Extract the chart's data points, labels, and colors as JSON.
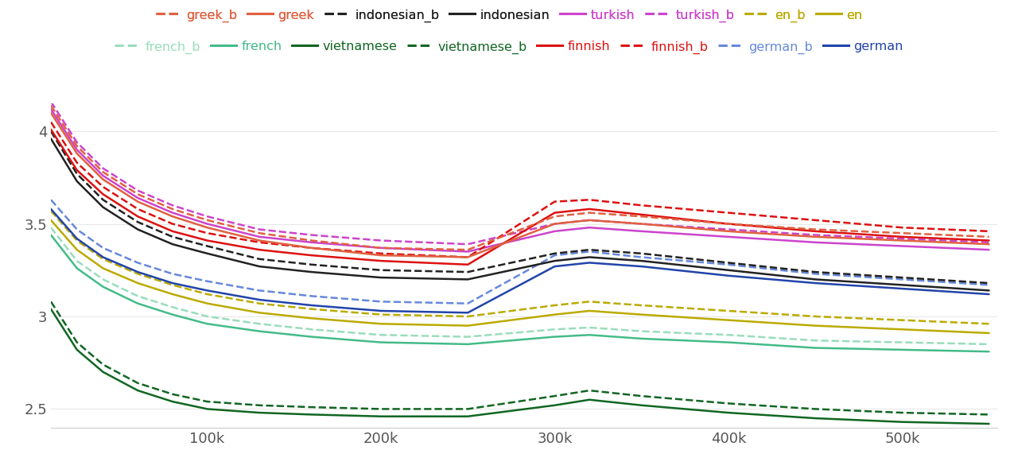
{
  "series": {
    "greek_b": {
      "color": "#E06040",
      "dashed": true
    },
    "greek": {
      "color": "#E06040",
      "dashed": false
    },
    "indonesian_b": {
      "color": "#222222",
      "dashed": true
    },
    "indonesian": {
      "color": "#222222",
      "dashed": false
    },
    "turkish": {
      "color": "#CC44CC",
      "dashed": false
    },
    "turkish_b": {
      "color": "#CC44CC",
      "dashed": true
    },
    "en_b": {
      "color": "#BBAA00",
      "dashed": true
    },
    "en": {
      "color": "#BBAA00",
      "dashed": false
    },
    "french_b": {
      "color": "#99DDBB",
      "dashed": true
    },
    "french": {
      "color": "#44BB88",
      "dashed": false
    },
    "vietnamese": {
      "color": "#116622",
      "dashed": false
    },
    "vietnamese_b": {
      "color": "#116622",
      "dashed": true
    },
    "finnish": {
      "color": "#DD1111",
      "dashed": false
    },
    "finnish_b": {
      "color": "#DD1111",
      "dashed": true
    },
    "german_b": {
      "color": "#6688DD",
      "dashed": true
    },
    "german": {
      "color": "#2244AA",
      "dashed": false
    }
  },
  "x": [
    10000,
    25000,
    40000,
    60000,
    80000,
    100000,
    130000,
    160000,
    200000,
    250000,
    300000,
    320000,
    350000,
    400000,
    450000,
    500000,
    550000
  ],
  "data": {
    "greek": [
      4.1,
      3.88,
      3.74,
      3.62,
      3.54,
      3.48,
      3.41,
      3.37,
      3.33,
      3.32,
      3.5,
      3.52,
      3.5,
      3.46,
      3.43,
      3.41,
      3.39
    ],
    "greek_b": [
      4.14,
      3.92,
      3.78,
      3.66,
      3.58,
      3.52,
      3.45,
      3.41,
      3.37,
      3.36,
      3.54,
      3.56,
      3.54,
      3.5,
      3.47,
      3.45,
      3.43
    ],
    "turkish": [
      4.12,
      3.9,
      3.76,
      3.64,
      3.56,
      3.5,
      3.43,
      3.4,
      3.37,
      3.35,
      3.46,
      3.48,
      3.46,
      3.43,
      3.4,
      3.38,
      3.36
    ],
    "turkish_b": [
      4.16,
      3.94,
      3.8,
      3.68,
      3.6,
      3.54,
      3.47,
      3.44,
      3.41,
      3.39,
      3.5,
      3.52,
      3.5,
      3.47,
      3.44,
      3.42,
      3.4
    ],
    "finnish": [
      4.01,
      3.79,
      3.66,
      3.54,
      3.46,
      3.41,
      3.36,
      3.33,
      3.3,
      3.28,
      3.56,
      3.58,
      3.55,
      3.5,
      3.46,
      3.43,
      3.41
    ],
    "finnish_b": [
      4.05,
      3.83,
      3.7,
      3.58,
      3.5,
      3.45,
      3.4,
      3.37,
      3.34,
      3.32,
      3.62,
      3.63,
      3.6,
      3.56,
      3.52,
      3.48,
      3.46
    ],
    "indonesian": [
      3.96,
      3.73,
      3.59,
      3.47,
      3.39,
      3.34,
      3.27,
      3.24,
      3.21,
      3.2,
      3.3,
      3.32,
      3.3,
      3.25,
      3.2,
      3.17,
      3.14
    ],
    "indonesian_b": [
      4.0,
      3.77,
      3.63,
      3.51,
      3.43,
      3.38,
      3.31,
      3.28,
      3.25,
      3.24,
      3.34,
      3.36,
      3.34,
      3.29,
      3.24,
      3.21,
      3.18
    ],
    "german": [
      3.58,
      3.42,
      3.32,
      3.24,
      3.18,
      3.14,
      3.09,
      3.06,
      3.03,
      3.02,
      3.27,
      3.29,
      3.27,
      3.22,
      3.18,
      3.15,
      3.12
    ],
    "german_b": [
      3.63,
      3.47,
      3.37,
      3.29,
      3.23,
      3.19,
      3.14,
      3.11,
      3.08,
      3.07,
      3.33,
      3.35,
      3.32,
      3.28,
      3.23,
      3.2,
      3.17
    ],
    "en": [
      3.52,
      3.36,
      3.26,
      3.18,
      3.12,
      3.07,
      3.02,
      2.99,
      2.96,
      2.95,
      3.01,
      3.03,
      3.01,
      2.98,
      2.95,
      2.93,
      2.91
    ],
    "en_b": [
      3.57,
      3.41,
      3.31,
      3.23,
      3.17,
      3.12,
      3.07,
      3.04,
      3.01,
      3.0,
      3.06,
      3.08,
      3.06,
      3.03,
      3.0,
      2.98,
      2.96
    ],
    "french_b": [
      3.48,
      3.3,
      3.2,
      3.11,
      3.05,
      3.0,
      2.96,
      2.93,
      2.9,
      2.89,
      2.93,
      2.94,
      2.92,
      2.9,
      2.87,
      2.86,
      2.85
    ],
    "french": [
      3.44,
      3.26,
      3.16,
      3.07,
      3.01,
      2.96,
      2.92,
      2.89,
      2.86,
      2.85,
      2.89,
      2.9,
      2.88,
      2.86,
      2.83,
      2.82,
      2.81
    ],
    "vietnamese": [
      3.04,
      2.82,
      2.7,
      2.6,
      2.54,
      2.5,
      2.48,
      2.47,
      2.46,
      2.46,
      2.52,
      2.55,
      2.52,
      2.48,
      2.45,
      2.43,
      2.42
    ],
    "vietnamese_b": [
      3.08,
      2.86,
      2.74,
      2.64,
      2.58,
      2.54,
      2.52,
      2.51,
      2.5,
      2.5,
      2.57,
      2.6,
      2.57,
      2.53,
      2.5,
      2.48,
      2.47
    ]
  },
  "legend_row1": [
    "greek_b",
    "greek",
    "indonesian_b",
    "indonesian",
    "turkish",
    "turkish_b",
    "en_b",
    "en"
  ],
  "legend_row2": [
    "french_b",
    "french",
    "vietnamese",
    "vietnamese_b",
    "finnish",
    "finnish_b",
    "german_b",
    "german"
  ],
  "ylim": [
    2.4,
    4.15
  ],
  "yticks": [
    2.5,
    3.0,
    3.5,
    4.0
  ],
  "xticks": [
    100000,
    200000,
    300000,
    400000,
    500000
  ],
  "xticklabels": [
    "100k",
    "200k",
    "300k",
    "400k",
    "500k"
  ],
  "background_color": "#ffffff",
  "grid_color": "#e8e8e8"
}
